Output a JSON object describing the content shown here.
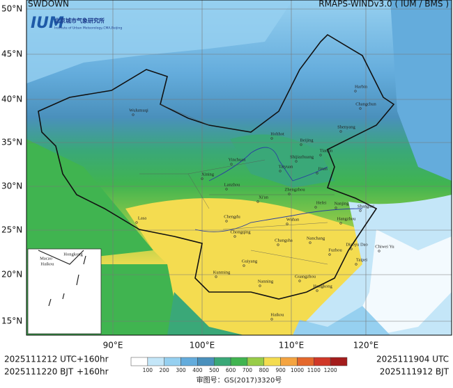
{
  "header": {
    "left": "SWDOWN",
    "right": "RMAPS-WINDv3.0 ( IUM / BMS )"
  },
  "logo": {
    "mark": "IUM",
    "name_cn": "北京城市气象研究所",
    "name_en": "Institute of Urban Meteorology,CMA,Beijing"
  },
  "map": {
    "lat_labels": [
      "50°N",
      "45°N",
      "40°N",
      "35°N",
      "30°N",
      "25°N",
      "20°N",
      "15°N"
    ],
    "lon_labels": [
      "90°E",
      "100°E",
      "110°E",
      "120°E"
    ],
    "cities": [
      "Harbin",
      "Changchun",
      "Shenyang",
      "Hohhot",
      "Beijing",
      "Tianjin",
      "Shijiazhuang",
      "Taiyuan",
      "Jinan",
      "Yinchuan",
      "Xining",
      "Lanzhou",
      "Zhengzhou",
      "Xi'an",
      "Hefei",
      "Nanjing",
      "Shanghai",
      "Hangzhou",
      "Chengdu",
      "Wuhan",
      "Chongqing",
      "Changsha",
      "Nanchang",
      "Fuzhou",
      "Diaoyu Dao",
      "Chiwei Yu",
      "Taipei",
      "Guiyang",
      "Kunming",
      "Nanning",
      "Guangzhou",
      "Hongkong",
      "Haikou",
      "Lasa",
      "Wulumuqi"
    ],
    "inset_labels": [
      "Hongkong",
      "Macao",
      "Haikou"
    ]
  },
  "colorbar": {
    "colors": [
      "#ffffff",
      "#c4e6f8",
      "#96d0f0",
      "#64acdc",
      "#4a90bc",
      "#3aa878",
      "#40b450",
      "#98cc48",
      "#f4dc50",
      "#f4a440",
      "#e4682c",
      "#d03828",
      "#a41c1c"
    ],
    "labels": [
      100,
      200,
      300,
      400,
      500,
      600,
      700,
      800,
      900,
      1000,
      1100,
      1200
    ]
  },
  "footer": {
    "init_utc": "2025111212 UTC",
    "lead_utc": "+160hr",
    "init_bjt": "2025111220 BJT",
    "lead_bjt": "+160hr",
    "valid_utc": "2025111904 UTC",
    "valid_bjt": "2025111912 BJT",
    "approval": "审图号：GS(2017)3320号"
  }
}
